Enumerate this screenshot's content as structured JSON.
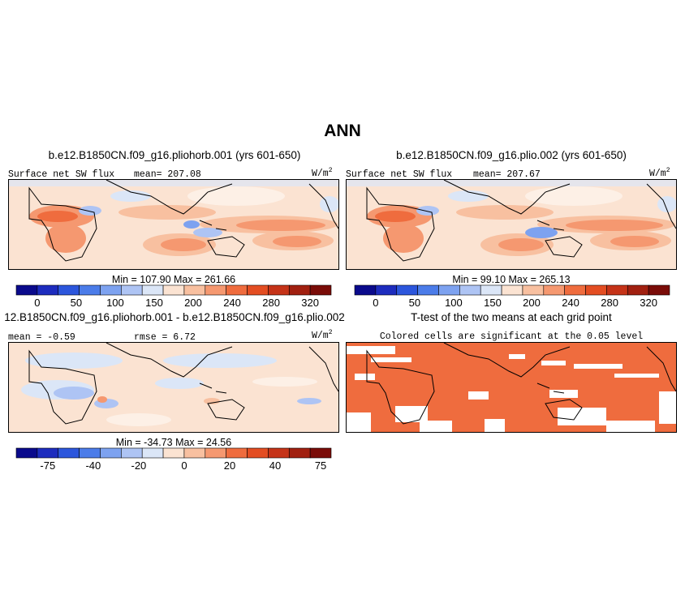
{
  "title": "ANN",
  "panels": [
    {
      "id": "p1",
      "title": "b.e12.B1850CN.f09_g16.pliohorb.001 (yrs 601-650)",
      "left_label": "Surface net SW flux",
      "stat_label": "mean= 207.08",
      "units_base": "W/m",
      "units_exp": "2",
      "minmax": "Min = 107.90 Max = 261.66"
    },
    {
      "id": "p2",
      "title": "b.e12.B1850CN.f09_g16.plio.002 (yrs 601-650)",
      "left_label": "Surface net SW flux",
      "stat_label": "mean= 207.67",
      "units_base": "W/m",
      "units_exp": "2",
      "minmax": "Min = 99.10 Max = 265.13"
    },
    {
      "id": "p3",
      "title": "12.B1850CN.f09_g16.pliohorb.001 - b.e12.B1850CN.f09_g16.plio.002",
      "left_label": "mean = -0.59",
      "stat_label": "rmse = 6.72",
      "units_base": "W/m",
      "units_exp": "2",
      "minmax": "Min = -34.73 Max = 24.56"
    },
    {
      "id": "p4",
      "title": "T-test of the two means at each grid point",
      "subtitle": "Colored cells are significant at the 0.05 level"
    }
  ],
  "colorbars": {
    "abs": {
      "colors": [
        "#0a0a8c",
        "#1d2cbe",
        "#2c56dc",
        "#4b7ce9",
        "#7da2f0",
        "#aec4f4",
        "#dbe6f7",
        "#fbe3d2",
        "#f8c0a0",
        "#f59870",
        "#ef6c3e",
        "#e34d22",
        "#c53318",
        "#a12010",
        "#7a0c08"
      ],
      "tick_labels": [
        "0",
        "50",
        "100",
        "150",
        "200",
        "240",
        "280",
        "320"
      ]
    },
    "diff": {
      "colors": [
        "#0a0a8c",
        "#1d2cbe",
        "#2c56dc",
        "#4b7ce9",
        "#7da2f0",
        "#aec4f4",
        "#dbe6f7",
        "#fbe3d2",
        "#f8c0a0",
        "#f59870",
        "#ef6c3e",
        "#e34d22",
        "#c53318",
        "#a12010",
        "#7a0c08"
      ],
      "tick_labels": [
        "-75",
        "-40",
        "-20",
        "0",
        "20",
        "40",
        "75"
      ]
    }
  },
  "chart_data": [
    {
      "type": "heatmap",
      "title": "b.e12.B1850CN.f09_g16.pliohorb.001 (yrs 601-650)",
      "variable": "Surface net SW flux",
      "units": "W/m2",
      "mean": 207.08,
      "min": 107.9,
      "max": 261.66,
      "levels": [
        0,
        25,
        50,
        75,
        100,
        125,
        150,
        175,
        200,
        220,
        240,
        260,
        280,
        300,
        320
      ],
      "colorbar_ticks": [
        0,
        50,
        100,
        150,
        200,
        240,
        280,
        320
      ]
    },
    {
      "type": "heatmap",
      "title": "b.e12.B1850CN.f09_g16.plio.002 (yrs 601-650)",
      "variable": "Surface net SW flux",
      "units": "W/m2",
      "mean": 207.67,
      "min": 99.1,
      "max": 265.13,
      "levels": [
        0,
        25,
        50,
        75,
        100,
        125,
        150,
        175,
        200,
        220,
        240,
        260,
        280,
        300,
        320
      ],
      "colorbar_ticks": [
        0,
        50,
        100,
        150,
        200,
        240,
        280,
        320
      ]
    },
    {
      "type": "heatmap",
      "title": "12.B1850CN.f09_g16.pliohorb.001 - b.e12.B1850CN.f09_g16.plio.002",
      "units": "W/m2",
      "mean": -0.59,
      "rmse": 6.72,
      "min": -34.73,
      "max": 24.56,
      "colorbar_ticks": [
        -75,
        -40,
        -20,
        0,
        20,
        40,
        75
      ]
    },
    {
      "type": "heatmap",
      "title": "T-test of the two means at each grid point",
      "subtitle": "Colored cells are significant at the 0.05 level",
      "significance_level": 0.05,
      "color": "#ef6c3e"
    }
  ]
}
